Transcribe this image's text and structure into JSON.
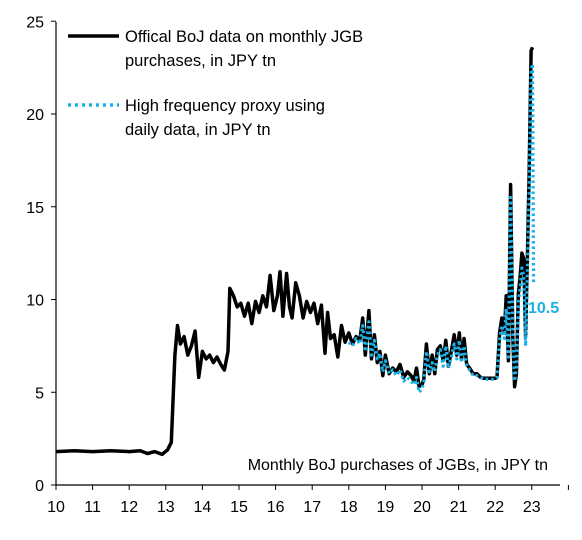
{
  "chart_data": {
    "type": "line",
    "annotation": "Monthly BoJ purchases of JGBs, in JPY tn",
    "xlim": [
      10,
      24
    ],
    "ylim": [
      0,
      25
    ],
    "x_ticks": [
      "10",
      "11",
      "12",
      "13",
      "14",
      "15",
      "16",
      "17",
      "18",
      "19",
      "20",
      "21",
      "22",
      "23"
    ],
    "y_ticks": [
      "0",
      "5",
      "10",
      "15",
      "20",
      "25"
    ],
    "end_label": "10.5",
    "grid": false,
    "legend_position": "top-left",
    "series": [
      {
        "name": "Offical BoJ data on monthly JGB purchases, in JPY tn",
        "color": "#000000",
        "style": "solid",
        "points": [
          [
            10.0,
            1.8
          ],
          [
            10.5,
            1.85
          ],
          [
            11.0,
            1.8
          ],
          [
            11.5,
            1.85
          ],
          [
            12.0,
            1.8
          ],
          [
            12.3,
            1.85
          ],
          [
            12.5,
            1.7
          ],
          [
            12.7,
            1.8
          ],
          [
            12.9,
            1.65
          ],
          [
            13.05,
            1.9
          ],
          [
            13.15,
            2.3
          ],
          [
            13.25,
            7.0
          ],
          [
            13.32,
            8.6
          ],
          [
            13.4,
            7.6
          ],
          [
            13.5,
            8.0
          ],
          [
            13.6,
            7.0
          ],
          [
            13.7,
            7.5
          ],
          [
            13.8,
            8.3
          ],
          [
            13.9,
            5.8
          ],
          [
            14.0,
            7.2
          ],
          [
            14.1,
            6.8
          ],
          [
            14.2,
            7.0
          ],
          [
            14.3,
            6.6
          ],
          [
            14.4,
            6.9
          ],
          [
            14.5,
            6.5
          ],
          [
            14.6,
            6.2
          ],
          [
            14.7,
            7.2
          ],
          [
            14.75,
            10.6
          ],
          [
            14.85,
            10.2
          ],
          [
            14.95,
            9.6
          ],
          [
            15.05,
            9.8
          ],
          [
            15.15,
            9.1
          ],
          [
            15.25,
            9.8
          ],
          [
            15.35,
            8.7
          ],
          [
            15.45,
            9.9
          ],
          [
            15.55,
            9.3
          ],
          [
            15.65,
            10.2
          ],
          [
            15.75,
            9.6
          ],
          [
            15.85,
            11.3
          ],
          [
            15.95,
            9.4
          ],
          [
            16.05,
            10.2
          ],
          [
            16.12,
            11.5
          ],
          [
            16.2,
            9.1
          ],
          [
            16.3,
            11.4
          ],
          [
            16.38,
            9.6
          ],
          [
            16.45,
            9.0
          ],
          [
            16.55,
            10.9
          ],
          [
            16.65,
            10.2
          ],
          [
            16.75,
            9.0
          ],
          [
            16.85,
            9.9
          ],
          [
            16.95,
            9.3
          ],
          [
            17.05,
            9.8
          ],
          [
            17.15,
            8.7
          ],
          [
            17.25,
            9.7
          ],
          [
            17.35,
            7.1
          ],
          [
            17.42,
            9.3
          ],
          [
            17.5,
            7.9
          ],
          [
            17.6,
            8.1
          ],
          [
            17.7,
            6.9
          ],
          [
            17.8,
            8.6
          ],
          [
            17.9,
            7.7
          ],
          [
            18.0,
            8.2
          ],
          [
            18.1,
            7.6
          ],
          [
            18.2,
            8.0
          ],
          [
            18.3,
            7.8
          ],
          [
            18.38,
            9.0
          ],
          [
            18.45,
            7.0
          ],
          [
            18.55,
            9.4
          ],
          [
            18.62,
            6.8
          ],
          [
            18.7,
            8.1
          ],
          [
            18.78,
            6.6
          ],
          [
            18.85,
            7.2
          ],
          [
            18.93,
            5.9
          ],
          [
            19.0,
            7.0
          ],
          [
            19.1,
            6.0
          ],
          [
            19.2,
            6.3
          ],
          [
            19.3,
            6.1
          ],
          [
            19.4,
            6.5
          ],
          [
            19.5,
            5.8
          ],
          [
            19.6,
            6.1
          ],
          [
            19.7,
            5.9
          ],
          [
            19.78,
            5.6
          ],
          [
            19.85,
            6.3
          ],
          [
            19.92,
            5.3
          ],
          [
            20.0,
            5.4
          ],
          [
            20.05,
            5.7
          ],
          [
            20.12,
            7.6
          ],
          [
            20.2,
            6.0
          ],
          [
            20.28,
            7.0
          ],
          [
            20.35,
            6.0
          ],
          [
            20.42,
            7.3
          ],
          [
            20.5,
            7.5
          ],
          [
            20.58,
            6.7
          ],
          [
            20.65,
            7.8
          ],
          [
            20.72,
            6.4
          ],
          [
            20.8,
            7.2
          ],
          [
            20.88,
            8.1
          ],
          [
            20.95,
            7.0
          ],
          [
            21.02,
            8.2
          ],
          [
            21.08,
            6.8
          ],
          [
            21.15,
            7.9
          ],
          [
            21.22,
            6.5
          ],
          [
            21.3,
            6.3
          ],
          [
            21.4,
            6.0
          ],
          [
            21.5,
            6.0
          ],
          [
            21.6,
            5.8
          ],
          [
            21.7,
            5.75
          ],
          [
            21.8,
            5.75
          ],
          [
            21.9,
            5.75
          ],
          [
            22.0,
            5.75
          ],
          [
            22.05,
            5.8
          ],
          [
            22.12,
            8.2
          ],
          [
            22.18,
            9.0
          ],
          [
            22.25,
            8.2
          ],
          [
            22.3,
            10.2
          ],
          [
            22.36,
            6.7
          ],
          [
            22.42,
            16.2
          ],
          [
            22.48,
            8.0
          ],
          [
            22.53,
            5.3
          ],
          [
            22.58,
            6.0
          ],
          [
            22.63,
            10.3
          ],
          [
            22.68,
            11.2
          ],
          [
            22.73,
            12.5
          ],
          [
            22.78,
            12.2
          ],
          [
            22.83,
            8.0
          ],
          [
            22.88,
            12.3
          ],
          [
            22.93,
            17.0
          ],
          [
            22.98,
            23.4
          ],
          [
            23.02,
            23.6
          ]
        ]
      },
      {
        "name": "High frequency proxy using daily data, in JPY tn",
        "color": "#1ab0e8",
        "style": "dotted",
        "points": [
          [
            18.0,
            7.7
          ],
          [
            18.1,
            7.5
          ],
          [
            18.2,
            7.9
          ],
          [
            18.3,
            7.6
          ],
          [
            18.38,
            8.6
          ],
          [
            18.45,
            7.2
          ],
          [
            18.55,
            8.8
          ],
          [
            18.62,
            7.0
          ],
          [
            18.7,
            7.8
          ],
          [
            18.78,
            6.8
          ],
          [
            18.85,
            7.1
          ],
          [
            18.93,
            6.1
          ],
          [
            19.0,
            6.7
          ],
          [
            19.1,
            6.0
          ],
          [
            19.2,
            6.2
          ],
          [
            19.3,
            5.9
          ],
          [
            19.4,
            6.2
          ],
          [
            19.5,
            5.6
          ],
          [
            19.6,
            5.8
          ],
          [
            19.7,
            5.6
          ],
          [
            19.78,
            5.4
          ],
          [
            19.85,
            5.8
          ],
          [
            19.92,
            5.0
          ],
          [
            20.0,
            5.2
          ],
          [
            20.05,
            5.5
          ],
          [
            20.12,
            7.2
          ],
          [
            20.2,
            6.1
          ],
          [
            20.28,
            6.6
          ],
          [
            20.35,
            6.1
          ],
          [
            20.42,
            7.0
          ],
          [
            20.5,
            7.3
          ],
          [
            20.58,
            6.4
          ],
          [
            20.65,
            7.5
          ],
          [
            20.72,
            6.3
          ],
          [
            20.8,
            6.9
          ],
          [
            20.88,
            7.6
          ],
          [
            20.95,
            6.8
          ],
          [
            21.02,
            7.8
          ],
          [
            21.08,
            6.6
          ],
          [
            21.15,
            7.5
          ],
          [
            21.22,
            6.4
          ],
          [
            21.3,
            6.2
          ],
          [
            21.4,
            5.9
          ],
          [
            21.5,
            5.9
          ],
          [
            21.6,
            5.8
          ],
          [
            21.7,
            5.7
          ],
          [
            21.8,
            5.7
          ],
          [
            21.9,
            5.7
          ],
          [
            22.0,
            5.7
          ],
          [
            22.05,
            5.8
          ],
          [
            22.12,
            7.8
          ],
          [
            22.18,
            8.6
          ],
          [
            22.25,
            7.9
          ],
          [
            22.3,
            9.5
          ],
          [
            22.36,
            6.9
          ],
          [
            22.42,
            15.5
          ],
          [
            22.48,
            8.3
          ],
          [
            22.53,
            5.6
          ],
          [
            22.58,
            6.3
          ],
          [
            22.63,
            9.8
          ],
          [
            22.68,
            10.6
          ],
          [
            22.73,
            11.7
          ],
          [
            22.78,
            11.3
          ],
          [
            22.83,
            7.5
          ],
          [
            22.88,
            11.6
          ],
          [
            22.93,
            16.0
          ],
          [
            22.98,
            22.3
          ],
          [
            23.02,
            22.7
          ],
          [
            23.05,
            10.9
          ]
        ]
      }
    ]
  }
}
